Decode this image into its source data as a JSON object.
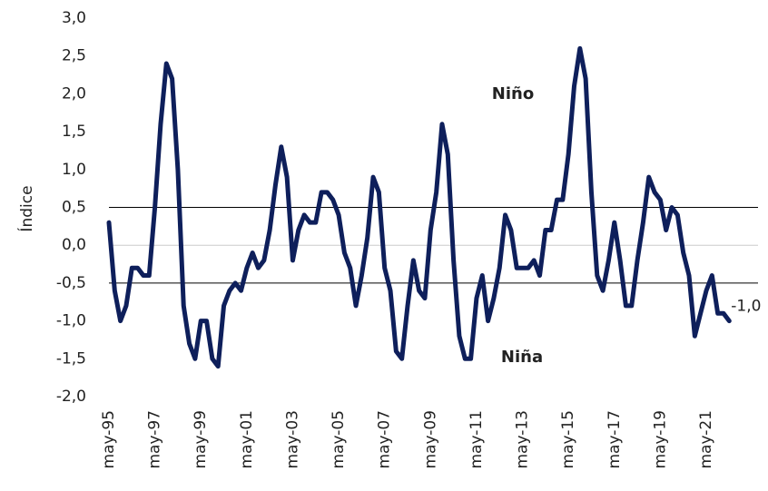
{
  "chart_data": {
    "type": "line",
    "y_label": "Índice",
    "categories": [
      "may-95",
      null,
      null,
      null,
      null,
      null,
      null,
      null,
      "may-97",
      null,
      null,
      null,
      null,
      null,
      null,
      null,
      "may-99",
      null,
      null,
      null,
      null,
      null,
      null,
      null,
      "may-01",
      null,
      null,
      null,
      null,
      null,
      null,
      null,
      "may-03",
      null,
      null,
      null,
      null,
      null,
      null,
      null,
      "may-05",
      null,
      null,
      null,
      null,
      null,
      null,
      null,
      "may-07",
      null,
      null,
      null,
      null,
      null,
      null,
      null,
      "may-09",
      null,
      null,
      null,
      null,
      null,
      null,
      null,
      "may-11",
      null,
      null,
      null,
      null,
      null,
      null,
      null,
      "may-13",
      null,
      null,
      null,
      null,
      null,
      null,
      null,
      "may-15",
      null,
      null,
      null,
      null,
      null,
      null,
      null,
      "may-17",
      null,
      null,
      null,
      null,
      null,
      null,
      null,
      "may-19",
      null,
      null,
      null,
      null,
      null,
      null,
      null,
      "may-21",
      null,
      null,
      null,
      null
    ],
    "series": [
      {
        "color": "#0e1f5b",
        "values": [
          0.3,
          -0.6,
          -1.0,
          -0.8,
          -0.3,
          -0.3,
          -0.4,
          -0.4,
          0.5,
          1.6,
          2.4,
          2.2,
          1.0,
          -0.8,
          -1.3,
          -1.5,
          -1.0,
          -1.0,
          -1.5,
          -1.6,
          -0.8,
          -0.6,
          -0.5,
          -0.6,
          -0.3,
          -0.1,
          -0.3,
          -0.2,
          0.2,
          0.8,
          1.3,
          0.9,
          -0.2,
          0.2,
          0.4,
          0.3,
          0.3,
          0.7,
          0.7,
          0.6,
          0.4,
          -0.1,
          -0.3,
          -0.8,
          -0.4,
          0.1,
          0.9,
          0.7,
          -0.3,
          -0.6,
          -1.4,
          -1.5,
          -0.8,
          -0.2,
          -0.6,
          -0.7,
          0.2,
          0.7,
          1.6,
          1.2,
          -0.2,
          -1.2,
          -1.5,
          -1.5,
          -0.7,
          -0.4,
          -1.0,
          -0.7,
          -0.3,
          0.4,
          0.2,
          -0.3,
          -0.3,
          -0.3,
          -0.2,
          -0.4,
          0.2,
          0.2,
          0.6,
          0.6,
          1.2,
          2.1,
          2.6,
          2.2,
          0.7,
          -0.4,
          -0.6,
          -0.2,
          0.3,
          -0.2,
          -0.8,
          -0.8,
          -0.2,
          0.3,
          0.9,
          0.7,
          0.6,
          0.2,
          0.5,
          0.4,
          -0.1,
          -0.4,
          -1.2,
          -0.9,
          -0.6,
          -0.4,
          -0.9,
          -0.9,
          -1.0
        ],
        "value_labels": [
          null,
          null,
          null,
          null,
          null,
          null,
          null,
          null,
          null,
          null,
          null,
          null,
          null,
          null,
          null,
          null,
          null,
          null,
          null,
          null,
          null,
          null,
          null,
          null,
          null,
          null,
          null,
          null,
          null,
          null,
          null,
          null,
          null,
          null,
          null,
          null,
          null,
          null,
          null,
          null,
          null,
          null,
          null,
          null,
          null,
          null,
          null,
          null,
          null,
          null,
          null,
          null,
          null,
          null,
          null,
          null,
          null,
          null,
          null,
          null,
          null,
          null,
          null,
          null,
          null,
          null,
          null,
          null,
          null,
          null,
          null,
          null,
          null,
          null,
          null,
          null,
          null,
          null,
          null,
          null,
          null,
          null,
          null,
          null,
          null,
          null,
          null,
          null,
          null,
          null,
          null,
          null,
          null,
          null,
          null,
          null,
          null,
          null,
          null,
          null,
          null,
          null,
          null,
          null,
          null,
          null,
          null,
          null,
          "-1,0"
        ]
      }
    ],
    "ylim": [
      -2,
      3
    ],
    "yticks": [
      {
        "value": -2,
        "label": "-2,0"
      },
      {
        "value": -1.5,
        "label": "-1,5"
      },
      {
        "value": -1,
        "label": "-1,0"
      },
      {
        "value": -0.5,
        "label": "-0,5"
      },
      {
        "value": 0,
        "label": "0,0"
      },
      {
        "value": 0.5,
        "label": "0,5"
      },
      {
        "value": 1,
        "label": "1,0"
      },
      {
        "value": 1.5,
        "label": "1,5"
      },
      {
        "value": 2,
        "label": "2,0"
      },
      {
        "value": 2.5,
        "label": "2,5"
      },
      {
        "value": 3,
        "label": "3,0"
      }
    ],
    "reference_lines": [
      {
        "value": 0,
        "color": "#cccccc"
      },
      {
        "value": 0.5,
        "color": "#000000"
      },
      {
        "value": -0.5,
        "color": "#000000"
      }
    ],
    "annotations": [
      "Niño",
      "Niña"
    ]
  }
}
